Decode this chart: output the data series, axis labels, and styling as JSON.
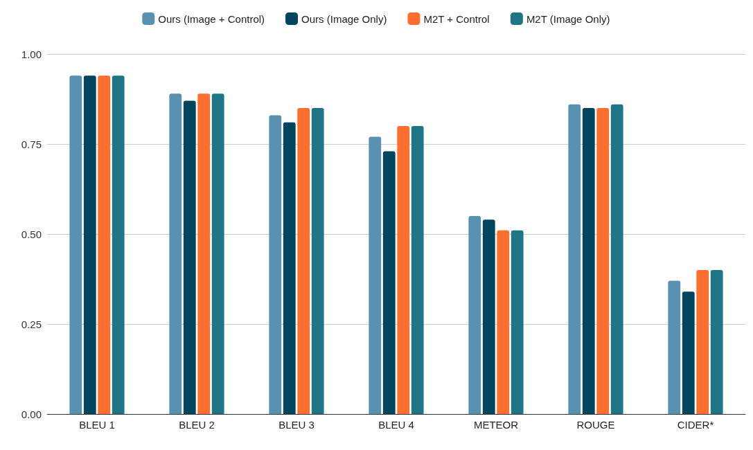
{
  "chart_data": {
    "type": "bar",
    "categories": [
      "BLEU 1",
      "BLEU 2",
      "BLEU 3",
      "BLEU 4",
      "METEOR",
      "ROUGE",
      "CIDER*"
    ],
    "series": [
      {
        "name": "Ours (Image + Control)",
        "color": "#5b91b0",
        "values": [
          0.94,
          0.89,
          0.83,
          0.77,
          0.55,
          0.86,
          0.37
        ]
      },
      {
        "name": "Ours (Image Only)",
        "color": "#03445e",
        "values": [
          0.94,
          0.87,
          0.81,
          0.73,
          0.54,
          0.85,
          0.34
        ]
      },
      {
        "name": "M2T + Control",
        "color": "#fe6e31",
        "values": [
          0.94,
          0.89,
          0.85,
          0.8,
          0.51,
          0.85,
          0.4
        ]
      },
      {
        "name": "M2T (Image Only)",
        "color": "#1f7586",
        "values": [
          0.94,
          0.89,
          0.85,
          0.8,
          0.51,
          0.86,
          0.4
        ]
      }
    ],
    "ylim": [
      0,
      1
    ],
    "yticks": [
      {
        "value": 0,
        "label": "0.00"
      },
      0.25,
      {
        "value": 0.5,
        "label": "0.50"
      },
      0.75,
      {
        "value": 1,
        "label": "1.00"
      }
    ],
    "grid": "y",
    "legend": "top"
  }
}
